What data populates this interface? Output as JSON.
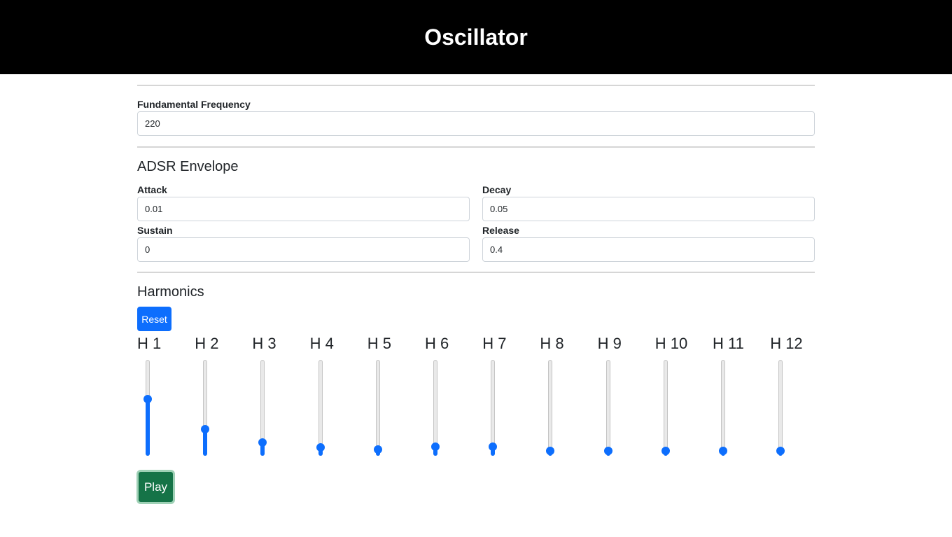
{
  "header": {
    "title": "Oscillator"
  },
  "frequency": {
    "label": "Fundamental Frequency",
    "value": "220"
  },
  "adsr": {
    "title": "ADSR Envelope",
    "attack": {
      "label": "Attack",
      "value": "0.01"
    },
    "decay": {
      "label": "Decay",
      "value": "0.05"
    },
    "sustain": {
      "label": "Sustain",
      "value": "0"
    },
    "release": {
      "label": "Release",
      "value": "0.4"
    }
  },
  "harmonics": {
    "title": "Harmonics",
    "reset_label": "Reset",
    "accent_color": "#0d6efd",
    "items": [
      {
        "label": "H 1",
        "value": 0.6
      },
      {
        "label": "H 2",
        "value": 0.25
      },
      {
        "label": "H 3",
        "value": 0.1
      },
      {
        "label": "H 4",
        "value": 0.04
      },
      {
        "label": "H 5",
        "value": 0.02
      },
      {
        "label": "H 6",
        "value": 0.05
      },
      {
        "label": "H 7",
        "value": 0.05
      },
      {
        "label": "H 8",
        "value": 0
      },
      {
        "label": "H 9",
        "value": 0
      },
      {
        "label": "H 10",
        "value": 0
      },
      {
        "label": "H 11",
        "value": 0
      },
      {
        "label": "H 12",
        "value": 0
      }
    ]
  },
  "play_label": "Play"
}
